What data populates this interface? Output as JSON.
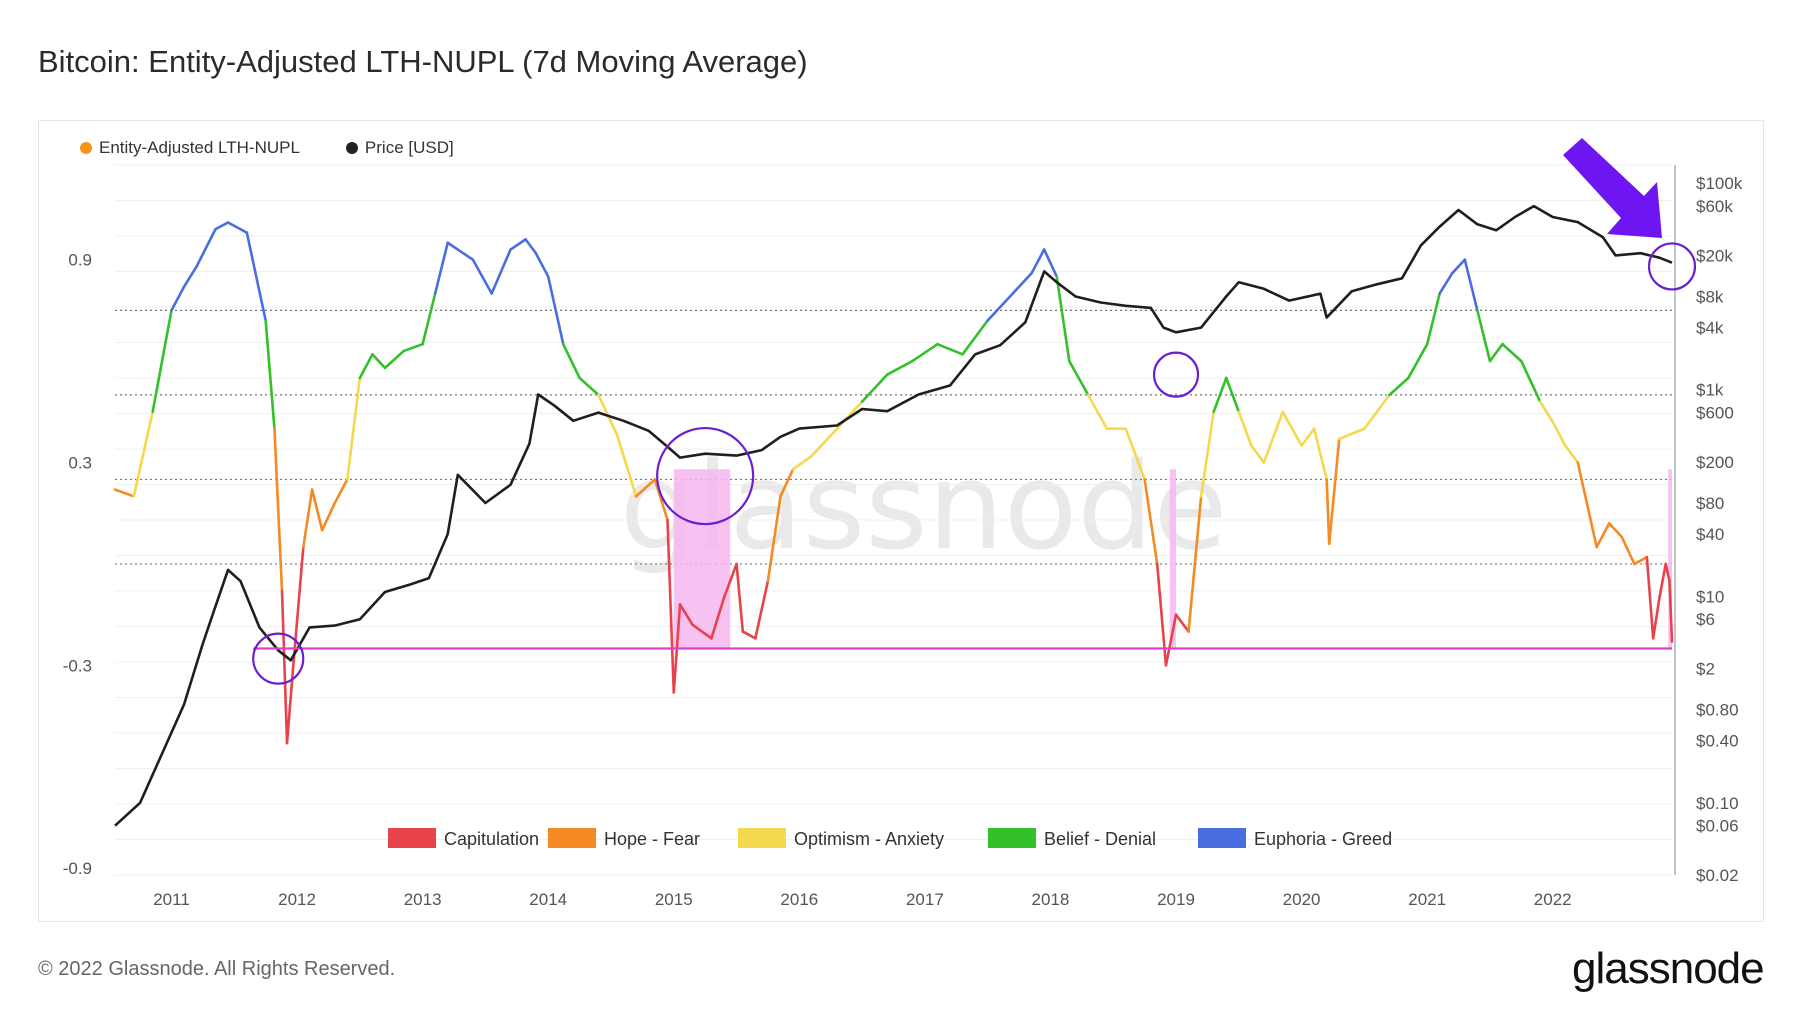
{
  "title": "Bitcoin: Entity-Adjusted LTH-NUPL (7d Moving Average)",
  "footer": "© 2022 Glassnode. All Rights Reserved.",
  "brand": "glassnode",
  "watermark": "glassnode",
  "legend_top": [
    {
      "label": "Entity-Adjusted LTH-NUPL",
      "color": "#f7931a"
    },
    {
      "label": "Price [USD]",
      "color": "#222222"
    }
  ],
  "chart_data": {
    "type": "line",
    "title": "Bitcoin: Entity-Adjusted LTH-NUPL (7d Moving Average)",
    "x_ticks": [
      "2011",
      "2012",
      "2013",
      "2014",
      "2015",
      "2016",
      "2017",
      "2018",
      "2019",
      "2020",
      "2021",
      "2022"
    ],
    "x_range": [
      2010.55,
      2022.95
    ],
    "y_left_ticks": [
      0.9,
      0.3,
      -0.3,
      -0.9
    ],
    "y_left_range": [
      -0.92,
      1.18
    ],
    "y_right_ticks": [
      "$100k",
      "$60k",
      "$20k",
      "$8k",
      "$4k",
      "$1k",
      "$600",
      "$200",
      "$80",
      "$40",
      "$10",
      "$6",
      "$2",
      "$0.80",
      "$0.40",
      "$0.10",
      "$0.06",
      "$0.02"
    ],
    "y_right_scale": "log",
    "y_right_range": [
      0.02,
      150000
    ],
    "zone_thresholds": [
      0.75,
      0.5,
      0.25,
      0.0
    ],
    "bands": [
      {
        "label": "Capitulation",
        "color": "#e8424a"
      },
      {
        "label": "Hope - Fear",
        "color": "#f58a23"
      },
      {
        "label": "Optimism - Anxiety",
        "color": "#f4d84e"
      },
      {
        "label": "Belief - Denial",
        "color": "#33c12a"
      },
      {
        "label": "Euphoria - Greed",
        "color": "#4a6ee0"
      }
    ],
    "reference_line": {
      "y": -0.25,
      "color": "#e040d0"
    },
    "series": [
      {
        "name": "Entity-Adjusted LTH-NUPL",
        "x": [
          2010.55,
          2010.7,
          2010.85,
          2011.0,
          2011.1,
          2011.2,
          2011.35,
          2011.45,
          2011.6,
          2011.75,
          2011.82,
          2011.88,
          2011.92,
          2011.97,
          2012.05,
          2012.12,
          2012.2,
          2012.3,
          2012.4,
          2012.5,
          2012.6,
          2012.7,
          2012.85,
          2013.0,
          2013.1,
          2013.2,
          2013.28,
          2013.4,
          2013.55,
          2013.7,
          2013.82,
          2013.9,
          2014.0,
          2014.12,
          2014.25,
          2014.4,
          2014.55,
          2014.7,
          2014.85,
          2014.95,
          2015.0,
          2015.05,
          2015.15,
          2015.3,
          2015.4,
          2015.5,
          2015.55,
          2015.65,
          2015.75,
          2015.85,
          2015.95,
          2016.1,
          2016.3,
          2016.5,
          2016.7,
          2016.9,
          2017.1,
          2017.3,
          2017.5,
          2017.7,
          2017.85,
          2017.95,
          2018.05,
          2018.15,
          2018.3,
          2018.45,
          2018.6,
          2018.75,
          2018.85,
          2018.92,
          2019.0,
          2019.1,
          2019.2,
          2019.3,
          2019.4,
          2019.5,
          2019.6,
          2019.7,
          2019.85,
          2020.0,
          2020.1,
          2020.2,
          2020.22,
          2020.3,
          2020.5,
          2020.7,
          2020.85,
          2021.0,
          2021.1,
          2021.2,
          2021.3,
          2021.4,
          2021.5,
          2021.6,
          2021.75,
          2021.9,
          2022.0,
          2022.1,
          2022.2,
          2022.35,
          2022.45,
          2022.55,
          2022.65,
          2022.75,
          2022.8,
          2022.85,
          2022.9,
          2022.93,
          2022.95
        ],
        "y": [
          0.22,
          0.2,
          0.45,
          0.75,
          0.82,
          0.88,
          0.99,
          1.01,
          0.98,
          0.72,
          0.4,
          -0.08,
          -0.53,
          -0.3,
          0.05,
          0.22,
          0.1,
          0.18,
          0.25,
          0.55,
          0.62,
          0.58,
          0.63,
          0.65,
          0.8,
          0.95,
          0.93,
          0.9,
          0.8,
          0.93,
          0.96,
          0.92,
          0.85,
          0.65,
          0.55,
          0.5,
          0.38,
          0.2,
          0.25,
          0.13,
          -0.38,
          -0.12,
          -0.18,
          -0.22,
          -0.1,
          0.0,
          -0.2,
          -0.22,
          -0.05,
          0.2,
          0.28,
          0.32,
          0.4,
          0.48,
          0.56,
          0.6,
          0.65,
          0.62,
          0.72,
          0.8,
          0.86,
          0.93,
          0.85,
          0.6,
          0.5,
          0.4,
          0.4,
          0.25,
          0.0,
          -0.3,
          -0.15,
          -0.2,
          0.2,
          0.45,
          0.55,
          0.45,
          0.35,
          0.3,
          0.45,
          0.35,
          0.4,
          0.25,
          0.06,
          0.37,
          0.4,
          0.5,
          0.55,
          0.65,
          0.8,
          0.86,
          0.9,
          0.75,
          0.6,
          0.65,
          0.6,
          0.48,
          0.42,
          0.35,
          0.3,
          0.05,
          0.12,
          0.08,
          0.0,
          0.02,
          -0.22,
          -0.1,
          0.0,
          -0.05,
          -0.23
        ]
      },
      {
        "name": "Price [USD]",
        "x": [
          2010.55,
          2010.75,
          2010.95,
          2011.1,
          2011.25,
          2011.35,
          2011.45,
          2011.55,
          2011.7,
          2011.85,
          2011.95,
          2012.1,
          2012.3,
          2012.5,
          2012.7,
          2012.9,
          2013.05,
          2013.2,
          2013.28,
          2013.5,
          2013.7,
          2013.85,
          2013.92,
          2014.05,
          2014.2,
          2014.4,
          2014.6,
          2014.8,
          2014.95,
          2015.05,
          2015.25,
          2015.5,
          2015.7,
          2015.85,
          2016.0,
          2016.3,
          2016.5,
          2016.7,
          2016.95,
          2017.2,
          2017.4,
          2017.6,
          2017.8,
          2017.95,
          2018.05,
          2018.2,
          2018.4,
          2018.6,
          2018.8,
          2018.9,
          2019.0,
          2019.2,
          2019.4,
          2019.5,
          2019.7,
          2019.9,
          2020.15,
          2020.2,
          2020.4,
          2020.6,
          2020.8,
          2020.95,
          2021.1,
          2021.25,
          2021.4,
          2021.55,
          2021.7,
          2021.85,
          2022.0,
          2022.2,
          2022.4,
          2022.5,
          2022.7,
          2022.85,
          2022.95
        ],
        "y": [
          0.06,
          0.1,
          0.35,
          0.9,
          3.5,
          8,
          18,
          14,
          5,
          3,
          2.4,
          5,
          5.2,
          6,
          11,
          13,
          15,
          40,
          150,
          80,
          120,
          300,
          900,
          700,
          500,
          600,
          500,
          400,
          280,
          220,
          240,
          230,
          260,
          350,
          420,
          450,
          650,
          620,
          900,
          1100,
          2200,
          2700,
          4500,
          14000,
          11000,
          8000,
          7000,
          6500,
          6200,
          4000,
          3600,
          4000,
          8000,
          11000,
          9500,
          7300,
          8500,
          5000,
          9000,
          10500,
          12000,
          25000,
          38000,
          55000,
          40000,
          35000,
          47000,
          60000,
          47000,
          42000,
          30000,
          20000,
          21000,
          19000,
          17000
        ]
      }
    ]
  }
}
